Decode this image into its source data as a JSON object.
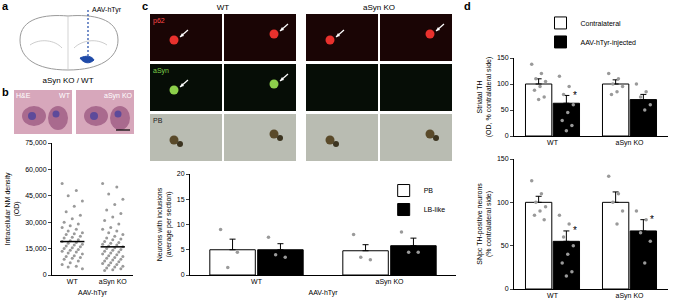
{
  "panel_labels": [
    "a",
    "b",
    "c",
    "d"
  ],
  "schematic": {
    "injection": "AAV-hTyr",
    "genotypes": "aSyn KO / WT"
  },
  "histology_b": {
    "stain": "H&E",
    "columns": [
      "WT",
      "aSyn KO"
    ]
  },
  "histology_c": {
    "columns": [
      "WT",
      "aSyn KO"
    ],
    "rows": [
      "p62",
      "aSyn",
      "PB"
    ]
  },
  "chart_data": [
    {
      "type": "scatter",
      "categories": [
        "WT",
        "aSyn KO"
      ],
      "x_label": "AAV-hTyr",
      "y_label": "Intracellular NM density (OD)",
      "ylim": [
        0,
        75000
      ],
      "yticks": [
        0,
        {
          "value": 15000,
          "label": "15,000"
        },
        {
          "value": 30000,
          "label": "30,000"
        },
        {
          "value": 45000,
          "label": "45,000"
        },
        {
          "value": 60000,
          "label": "60,000"
        },
        {
          "value": 75000,
          "label": "75,000"
        }
      ],
      "grid": false,
      "color": "#9a9a9a",
      "points": [
        [
          52000,
          48000,
          45000,
          42000,
          39000,
          36000,
          34000,
          32000,
          30000,
          29000,
          28000,
          27000,
          26000,
          25000,
          24000,
          23500,
          23000,
          22000,
          21500,
          21000,
          20000,
          19500,
          19000,
          18500,
          18000,
          17500,
          17000,
          16500,
          16000,
          15500,
          15000,
          14500,
          14000,
          13500,
          13000,
          12500,
          12000,
          11000,
          10500,
          10000,
          9500,
          9000,
          8000,
          7000,
          6000,
          5000,
          4500,
          3500
        ],
        [
          52000,
          50000,
          46000,
          43000,
          40000,
          37000,
          35000,
          33000,
          31000,
          29000,
          27000,
          26000,
          25000,
          24000,
          23000,
          22000,
          21000,
          20500,
          20000,
          19000,
          18500,
          18000,
          17500,
          17000,
          16500,
          16000,
          15500,
          15000,
          14500,
          14000,
          13500,
          13000,
          12500,
          12000,
          11500,
          11000,
          10500,
          10000,
          9500,
          9000,
          8500,
          8000,
          7500,
          7000,
          6500,
          6000,
          5500,
          5000,
          4500,
          4000,
          3500,
          3000,
          2500
        ]
      ],
      "means": [
        19000,
        16000
      ]
    },
    {
      "type": "bar",
      "categories": [
        "WT",
        "aSyn KO"
      ],
      "x_label": "AAV-hTyr",
      "y_label": "Neurons with inclusions (average per section)",
      "ylim": [
        0,
        20
      ],
      "yticks": [
        0,
        5,
        10,
        15,
        20
      ],
      "grid": false,
      "legend": "top right",
      "series": [
        {
          "name": "PB",
          "color": "#ffffff",
          "values": [
            5,
            4.8
          ],
          "errors": [
            2.1,
            1.2
          ],
          "points": [
            [
              9,
              4.5,
              1.5
            ],
            [
              8,
              3,
              3.5
            ]
          ]
        },
        {
          "name": "LB-like",
          "color": "#000000",
          "values": [
            5,
            5.8
          ],
          "errors": [
            1.2,
            1.5
          ],
          "points": [
            [
              7.5,
              3.5,
              4
            ],
            [
              8.5,
              4.5,
              4.5
            ]
          ]
        }
      ]
    },
    {
      "type": "bar",
      "categories": [
        "WT",
        "aSyn KO"
      ],
      "y_label": "Striatal TH (OD, % contralateral side)",
      "ylim": [
        0,
        150
      ],
      "yticks": [
        0,
        50,
        100,
        150
      ],
      "grid": false,
      "legend": "top",
      "series": [
        {
          "name": "Contralateral",
          "color": "#ffffff",
          "values": [
            100,
            100
          ],
          "errors": [
            10,
            8
          ],
          "points": [
            [
              138,
              120,
              110,
              105,
              95,
              88,
              75,
              70
            ],
            [
              120,
              110,
              100,
              95,
              85,
              80
            ]
          ],
          "significance": [
            null,
            null
          ]
        },
        {
          "name": "AAV-hTyr-injected",
          "color": "#000000",
          "values": [
            63,
            70
          ],
          "errors": [
            15,
            10
          ],
          "points": [
            [
              115,
              95,
              80,
              60,
              45,
              30,
              20,
              10
            ],
            [
              100,
              85,
              75,
              60,
              50
            ]
          ],
          "significance": [
            "*",
            null
          ]
        }
      ]
    },
    {
      "type": "bar",
      "categories": [
        "WT",
        "aSyn KO"
      ],
      "y_label": "SNpc TH-positive neurons (% contralateral side)",
      "ylim": [
        0,
        150
      ],
      "yticks": [
        0,
        50,
        100,
        150
      ],
      "grid": false,
      "series": [
        {
          "name": "Contralateral",
          "color": "#ffffff",
          "values": [
            100,
            100
          ],
          "errors": [
            7,
            12
          ],
          "points": [
            [
              125,
              110,
              100,
              95,
              90,
              85,
              80
            ],
            [
              130,
              110,
              100,
              90,
              75
            ]
          ],
          "significance": [
            null,
            null
          ]
        },
        {
          "name": "AAV-hTyr-injected",
          "color": "#000000",
          "values": [
            55,
            67
          ],
          "errors": [
            12,
            13
          ],
          "points": [
            [
              85,
              75,
              60,
              50,
              40,
              30,
              20,
              15
            ],
            [
              90,
              80,
              65,
              55,
              30
            ]
          ],
          "significance": [
            "*",
            "*"
          ]
        }
      ]
    }
  ]
}
